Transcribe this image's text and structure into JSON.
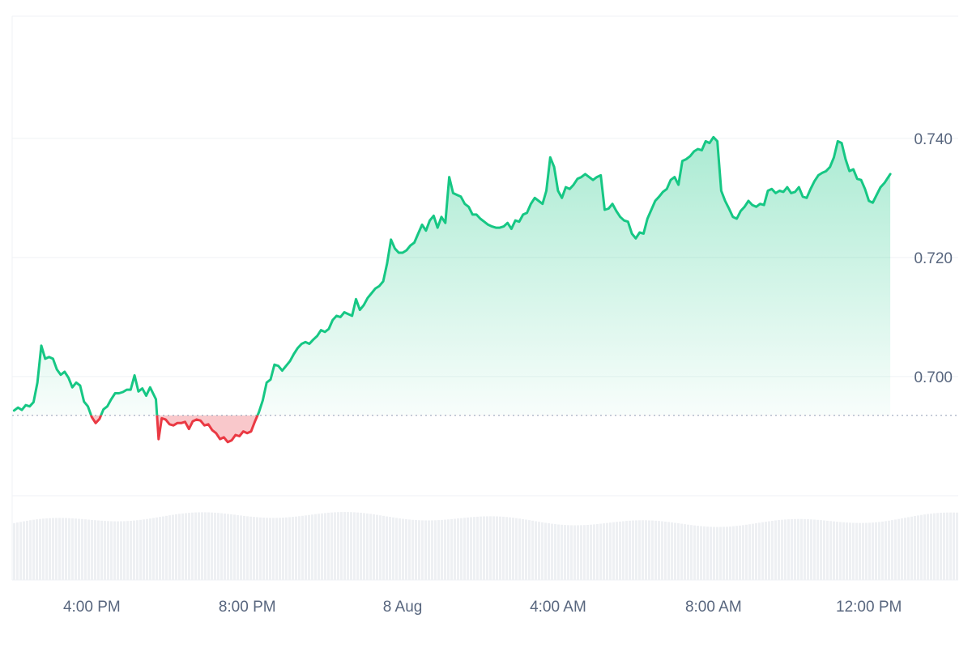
{
  "chart_data": {
    "type": "line",
    "title": "",
    "xlabel": "",
    "ylabel": "",
    "baseline": 0.6935,
    "ylim": [
      0.68,
      0.7605
    ],
    "y_ticks": [
      0.7,
      0.72,
      0.74
    ],
    "y_tick_labels": [
      "0.700",
      "0.720",
      "0.740"
    ],
    "x_ticks": [
      "4:00 PM",
      "8:00 PM",
      "8 Aug",
      "4:00 AM",
      "8:00 AM",
      "12:00 PM"
    ],
    "x_tick_hours": [
      2,
      6,
      10,
      14,
      18,
      22
    ],
    "x_range_hours": [
      -0.05,
      24.3
    ],
    "grid": true,
    "legend": "none",
    "colors": {
      "up": "#16c784",
      "down": "#ea3943",
      "axis_text": "#58667e",
      "grid": "#eff2f5",
      "baseline": "#a6b0c3",
      "volume": "#eef0f3"
    },
    "series": [
      {
        "values": [
          [
            0.0,
            0.6943
          ],
          [
            0.1,
            0.6948
          ],
          [
            0.2,
            0.6944
          ],
          [
            0.3,
            0.6952
          ],
          [
            0.4,
            0.695
          ],
          [
            0.5,
            0.6957
          ],
          [
            0.6,
            0.699
          ],
          [
            0.7,
            0.7052
          ],
          [
            0.8,
            0.703
          ],
          [
            0.9,
            0.7033
          ],
          [
            1.0,
            0.703
          ],
          [
            1.1,
            0.7012
          ],
          [
            1.2,
            0.7003
          ],
          [
            1.3,
            0.7008
          ],
          [
            1.4,
            0.6998
          ],
          [
            1.5,
            0.6982
          ],
          [
            1.6,
            0.699
          ],
          [
            1.7,
            0.6985
          ],
          [
            1.8,
            0.6958
          ],
          [
            1.9,
            0.695
          ],
          [
            2.0,
            0.6932
          ],
          [
            2.1,
            0.6922
          ],
          [
            2.2,
            0.6929
          ],
          [
            2.3,
            0.6945
          ],
          [
            2.4,
            0.695
          ],
          [
            2.5,
            0.6962
          ],
          [
            2.6,
            0.6972
          ],
          [
            2.7,
            0.6972
          ],
          [
            2.8,
            0.6974
          ],
          [
            2.9,
            0.6978
          ],
          [
            3.0,
            0.6978
          ],
          [
            3.1,
            0.7002
          ],
          [
            3.2,
            0.6975
          ],
          [
            3.3,
            0.698
          ],
          [
            3.4,
            0.6968
          ],
          [
            3.5,
            0.6982
          ],
          [
            3.65,
            0.6962
          ],
          [
            3.72,
            0.6895
          ],
          [
            3.8,
            0.693
          ],
          [
            3.9,
            0.6928
          ],
          [
            4.0,
            0.692
          ],
          [
            4.1,
            0.6918
          ],
          [
            4.2,
            0.6922
          ],
          [
            4.3,
            0.6922
          ],
          [
            4.4,
            0.6924
          ],
          [
            4.5,
            0.6912
          ],
          [
            4.6,
            0.6925
          ],
          [
            4.7,
            0.6928
          ],
          [
            4.8,
            0.6926
          ],
          [
            4.9,
            0.6918
          ],
          [
            5.0,
            0.692
          ],
          [
            5.1,
            0.691
          ],
          [
            5.2,
            0.6905
          ],
          [
            5.3,
            0.6895
          ],
          [
            5.4,
            0.6898
          ],
          [
            5.5,
            0.689
          ],
          [
            5.6,
            0.6893
          ],
          [
            5.7,
            0.6902
          ],
          [
            5.8,
            0.69
          ],
          [
            5.9,
            0.6908
          ],
          [
            6.0,
            0.6905
          ],
          [
            6.1,
            0.6908
          ],
          [
            6.2,
            0.6925
          ],
          [
            6.3,
            0.694
          ],
          [
            6.4,
            0.696
          ],
          [
            6.5,
            0.699
          ],
          [
            6.6,
            0.6995
          ],
          [
            6.7,
            0.702
          ],
          [
            6.8,
            0.7018
          ],
          [
            6.9,
            0.701
          ],
          [
            7.0,
            0.7018
          ],
          [
            7.1,
            0.7026
          ],
          [
            7.2,
            0.7038
          ],
          [
            7.3,
            0.7048
          ],
          [
            7.4,
            0.7055
          ],
          [
            7.5,
            0.7058
          ],
          [
            7.6,
            0.7055
          ],
          [
            7.7,
            0.7062
          ],
          [
            7.8,
            0.7068
          ],
          [
            7.9,
            0.7078
          ],
          [
            8.0,
            0.7075
          ],
          [
            8.1,
            0.708
          ],
          [
            8.2,
            0.7095
          ],
          [
            8.3,
            0.7102
          ],
          [
            8.4,
            0.71
          ],
          [
            8.5,
            0.7108
          ],
          [
            8.6,
            0.7105
          ],
          [
            8.7,
            0.7102
          ],
          [
            8.8,
            0.713
          ],
          [
            8.9,
            0.7112
          ],
          [
            9.0,
            0.712
          ],
          [
            9.1,
            0.7132
          ],
          [
            9.2,
            0.714
          ],
          [
            9.3,
            0.7148
          ],
          [
            9.4,
            0.7152
          ],
          [
            9.5,
            0.716
          ],
          [
            9.6,
            0.719
          ],
          [
            9.7,
            0.723
          ],
          [
            9.8,
            0.7215
          ],
          [
            9.9,
            0.7208
          ],
          [
            10.0,
            0.7208
          ],
          [
            10.1,
            0.7212
          ],
          [
            10.2,
            0.722
          ],
          [
            10.3,
            0.7225
          ],
          [
            10.4,
            0.724
          ],
          [
            10.5,
            0.7255
          ],
          [
            10.6,
            0.7245
          ],
          [
            10.7,
            0.7262
          ],
          [
            10.8,
            0.727
          ],
          [
            10.9,
            0.725
          ],
          [
            11.0,
            0.7268
          ],
          [
            11.1,
            0.7258
          ],
          [
            11.2,
            0.7335
          ],
          [
            11.3,
            0.7308
          ],
          [
            11.4,
            0.7305
          ],
          [
            11.5,
            0.7302
          ],
          [
            11.6,
            0.729
          ],
          [
            11.7,
            0.7285
          ],
          [
            11.8,
            0.7272
          ],
          [
            11.9,
            0.7272
          ],
          [
            12.0,
            0.7265
          ],
          [
            12.1,
            0.726
          ],
          [
            12.2,
            0.7255
          ],
          [
            12.3,
            0.7252
          ],
          [
            12.4,
            0.725
          ],
          [
            12.5,
            0.725
          ],
          [
            12.6,
            0.7252
          ],
          [
            12.7,
            0.7258
          ],
          [
            12.8,
            0.7248
          ],
          [
            12.9,
            0.7262
          ],
          [
            13.0,
            0.726
          ],
          [
            13.1,
            0.7272
          ],
          [
            13.2,
            0.7275
          ],
          [
            13.3,
            0.729
          ],
          [
            13.4,
            0.73
          ],
          [
            13.5,
            0.7295
          ],
          [
            13.6,
            0.729
          ],
          [
            13.7,
            0.7312
          ],
          [
            13.8,
            0.7368
          ],
          [
            13.9,
            0.7352
          ],
          [
            14.0,
            0.7312
          ],
          [
            14.1,
            0.73
          ],
          [
            14.2,
            0.7318
          ],
          [
            14.3,
            0.7315
          ],
          [
            14.4,
            0.7322
          ],
          [
            14.5,
            0.7332
          ],
          [
            14.6,
            0.7335
          ],
          [
            14.7,
            0.734
          ],
          [
            14.8,
            0.7335
          ],
          [
            14.9,
            0.733
          ],
          [
            15.0,
            0.7335
          ],
          [
            15.1,
            0.7338
          ],
          [
            15.2,
            0.728
          ],
          [
            15.3,
            0.7282
          ],
          [
            15.4,
            0.729
          ],
          [
            15.5,
            0.7278
          ],
          [
            15.6,
            0.7268
          ],
          [
            15.7,
            0.7262
          ],
          [
            15.8,
            0.726
          ],
          [
            15.9,
            0.724
          ],
          [
            16.0,
            0.7232
          ],
          [
            16.1,
            0.7242
          ],
          [
            16.2,
            0.724
          ],
          [
            16.3,
            0.7265
          ],
          [
            16.4,
            0.728
          ],
          [
            16.5,
            0.7295
          ],
          [
            16.6,
            0.7302
          ],
          [
            16.7,
            0.731
          ],
          [
            16.8,
            0.7315
          ],
          [
            16.9,
            0.733
          ],
          [
            17.0,
            0.7335
          ],
          [
            17.1,
            0.7322
          ],
          [
            17.2,
            0.7362
          ],
          [
            17.3,
            0.7365
          ],
          [
            17.4,
            0.737
          ],
          [
            17.5,
            0.7378
          ],
          [
            17.6,
            0.7382
          ],
          [
            17.7,
            0.738
          ],
          [
            17.8,
            0.7395
          ],
          [
            17.9,
            0.7392
          ],
          [
            18.0,
            0.7402
          ],
          [
            18.1,
            0.7395
          ],
          [
            18.2,
            0.7312
          ],
          [
            18.3,
            0.7295
          ],
          [
            18.4,
            0.7282
          ],
          [
            18.5,
            0.7268
          ],
          [
            18.6,
            0.7265
          ],
          [
            18.7,
            0.7278
          ],
          [
            18.8,
            0.7285
          ],
          [
            18.9,
            0.7295
          ],
          [
            19.0,
            0.7288
          ],
          [
            19.1,
            0.7285
          ],
          [
            19.2,
            0.729
          ],
          [
            19.3,
            0.7288
          ],
          [
            19.4,
            0.7312
          ],
          [
            19.5,
            0.7315
          ],
          [
            19.6,
            0.7308
          ],
          [
            19.7,
            0.7312
          ],
          [
            19.8,
            0.731
          ],
          [
            19.9,
            0.7318
          ],
          [
            20.0,
            0.7308
          ],
          [
            20.1,
            0.731
          ],
          [
            20.2,
            0.7318
          ],
          [
            20.3,
            0.7302
          ],
          [
            20.4,
            0.73
          ],
          [
            20.5,
            0.7315
          ],
          [
            20.6,
            0.7328
          ],
          [
            20.7,
            0.7338
          ],
          [
            20.8,
            0.7342
          ],
          [
            20.9,
            0.7345
          ],
          [
            21.0,
            0.7352
          ],
          [
            21.1,
            0.7368
          ],
          [
            21.2,
            0.7395
          ],
          [
            21.3,
            0.7392
          ],
          [
            21.4,
            0.7365
          ],
          [
            21.5,
            0.7345
          ],
          [
            21.6,
            0.7348
          ],
          [
            21.7,
            0.7332
          ],
          [
            21.8,
            0.733
          ],
          [
            21.9,
            0.7315
          ],
          [
            22.0,
            0.7295
          ],
          [
            22.1,
            0.7292
          ],
          [
            22.2,
            0.7305
          ],
          [
            22.3,
            0.7318
          ],
          [
            22.4,
            0.7325
          ],
          [
            22.55,
            0.734
          ]
        ]
      }
    ]
  }
}
